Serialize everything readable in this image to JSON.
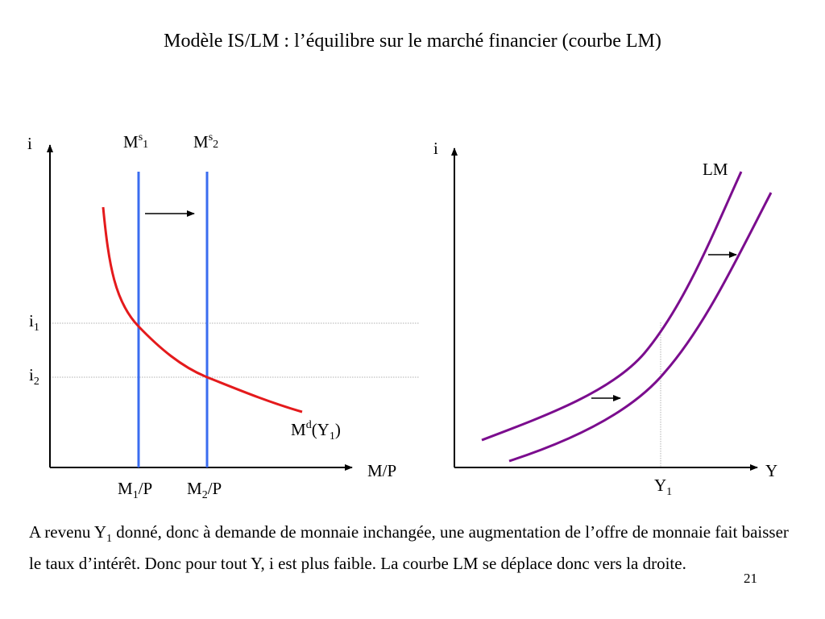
{
  "title": "Modèle IS/LM : l’équilibre sur le marché financier (courbe LM)",
  "left_chart": {
    "y_axis_label": "i",
    "x_axis_label": "M/P",
    "supply_1": {
      "base": "M",
      "sup": "s",
      "sub": "1"
    },
    "supply_2": {
      "base": "M",
      "sup": "s",
      "sub": "2"
    },
    "rate_1": {
      "base": "i",
      "sub": "1"
    },
    "rate_2": {
      "base": "i",
      "sub": "2"
    },
    "money_1": {
      "base": "M",
      "sub": "1",
      "suffix": "/P"
    },
    "money_2": {
      "base": "M",
      "sub": "2",
      "suffix": "/P"
    },
    "demand": {
      "base": "M",
      "sup": "d",
      "open": "(Y",
      "sub": "1",
      "close": ")"
    }
  },
  "right_chart": {
    "y_axis_label": "i",
    "x_axis_label": "Y",
    "curve_label": "LM",
    "income": {
      "base": "Y",
      "sub": "1"
    }
  },
  "caption": {
    "part1": "A revenu Y",
    "sub": "1",
    "part2": " donné, donc à demande de monnaie inchangée, une augmentation de l’offre de monnaie fait baisser le taux d’intérêt. Donc pour tout Y, i est plus faible. La courbe LM se déplace donc vers la droite."
  },
  "page_number": "21",
  "colors": {
    "demand_curve": "#e41a1c",
    "supply_lines": "#3a6cf0",
    "lm_curves": "#7b0d8e",
    "guides": "#b0b0b0",
    "axes": "#000000"
  }
}
